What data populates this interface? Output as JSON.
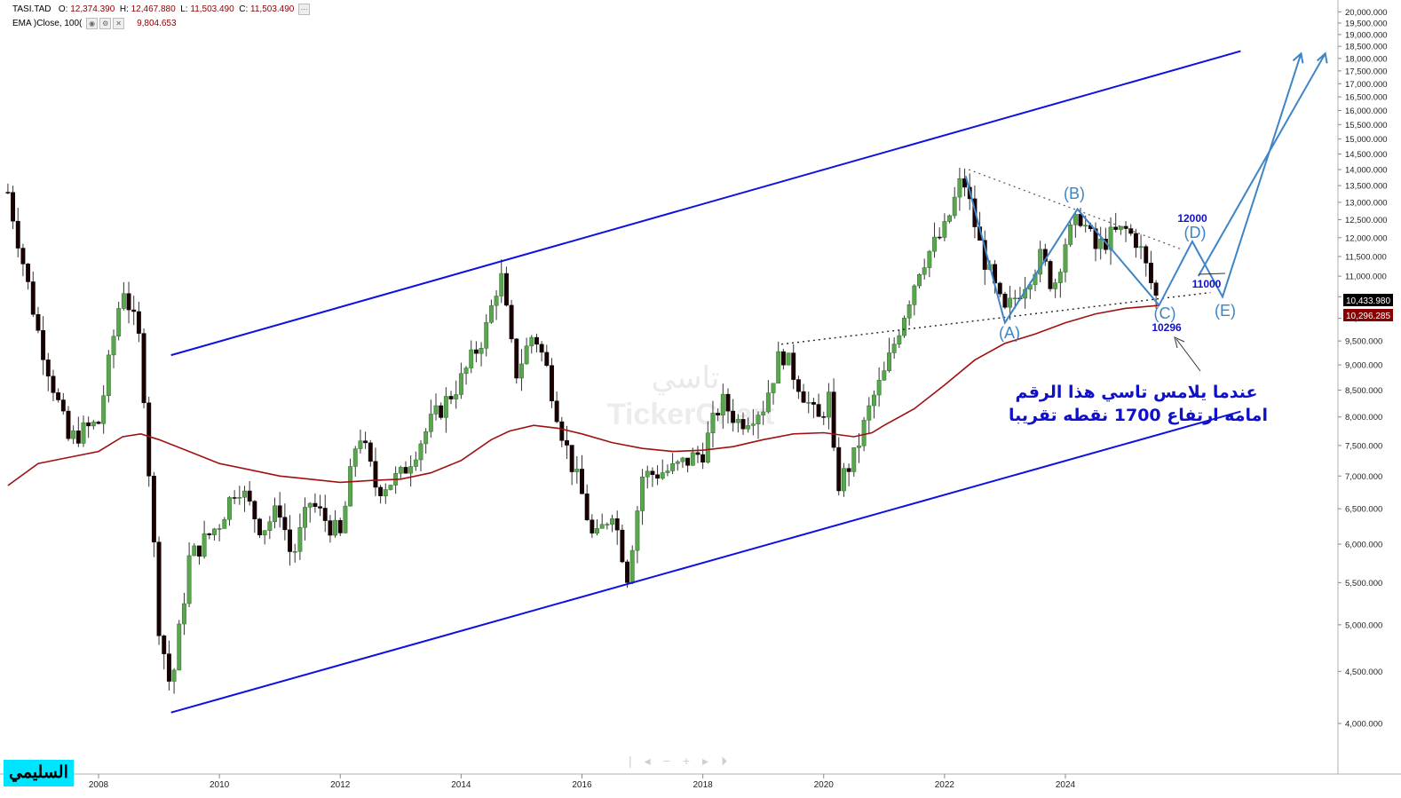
{
  "legend": {
    "symbol": "TASI.TAD",
    "o_label": "O:",
    "o": "12,374.390",
    "h_label": "H:",
    "h": "12,467.880",
    "l_label": "L:",
    "l": "11,503.490",
    "c_label": "C:",
    "c": "11,503.490",
    "ema_label": "EMA  )Close, 100(",
    "ema_value": "9,804.653"
  },
  "price_badges": {
    "last": "10,433.980",
    "ema": "10,296.285"
  },
  "annotations": {
    "label_a": "(A)",
    "label_b": "(B)",
    "label_c": "(C)",
    "label_d": "(D)",
    "label_e": "(E)",
    "target_12000": "12000",
    "target_11000": "11000",
    "low_10296": "10296",
    "note_line1": "عندما يلامس تاسي هذا الرقم",
    "note_line2": "امامه ارتفاع 1700 نقطه تقريبا"
  },
  "watermark": {
    "arabic": "تاسي",
    "brand": "TickerChart"
  },
  "logo": "السليمي",
  "colors": {
    "up": "#5aa64f",
    "down": "#1a0000",
    "ema": "#a01010",
    "channel": "#1010e0",
    "wave": "#3d85c6",
    "badge_last": "#000000",
    "badge_ema": "#8b0000"
  },
  "chart_data": {
    "type": "candlestick",
    "title": "TASI.TAD",
    "y_scale": "log",
    "ylim": [
      3800,
      20000
    ],
    "y_ticks": [
      4000,
      4500,
      5000,
      5500,
      6000,
      6500,
      7000,
      7500,
      8000,
      8500,
      9000,
      9500,
      10000,
      10500,
      11000,
      11500,
      12000,
      12500,
      13000,
      13500,
      14000,
      14500,
      15000,
      15500,
      16000,
      16500,
      17000,
      17500,
      18000,
      18500,
      19000,
      19500,
      20000
    ],
    "y_tick_labels": [
      "4,000.000",
      "4,500.000",
      "5,000.000",
      "5,500.000",
      "6,000.000",
      "6,500.000",
      "7,000.000",
      "7,500.000",
      "8,000.000",
      "8,500.000",
      "9,000.000",
      "9,500.000",
      "10,000.000",
      "10,500.000",
      "11,000.000",
      "11,500.000",
      "12,000.000",
      "12,500.000",
      "13,000.000",
      "13,500.000",
      "14,000.000",
      "14,500.000",
      "15,000.000",
      "15,500.000",
      "16,000.000",
      "16,500.000",
      "17,000.000",
      "17,500.000",
      "18,000.000",
      "18,500.000",
      "19,000.000",
      "19,500.000",
      "20,000.000"
    ],
    "x_ticks": [
      2008,
      2010,
      2012,
      2014,
      2016,
      2018,
      2020,
      2022,
      2024
    ],
    "x_tick_labels": [
      "2008",
      "2010",
      "2012",
      "2014",
      "2016",
      "2018",
      "2020",
      "2022",
      "2024"
    ],
    "xlim": [
      2006.4,
      2028.6
    ],
    "series": [
      {
        "kind": "price",
        "points": [
          [
            2006.5,
            13300
          ],
          [
            2007.0,
            9700
          ],
          [
            2007.5,
            7600
          ],
          [
            2008.0,
            7900
          ],
          [
            2008.4,
            10800
          ],
          [
            2008.7,
            9400
          ],
          [
            2009.0,
            5000
          ],
          [
            2009.2,
            4300
          ],
          [
            2009.5,
            5800
          ],
          [
            2010.0,
            6300
          ],
          [
            2010.3,
            6900
          ],
          [
            2010.7,
            6200
          ],
          [
            2011.0,
            6500
          ],
          [
            2011.2,
            5800
          ],
          [
            2011.5,
            6600
          ],
          [
            2012.0,
            6100
          ],
          [
            2012.3,
            7800
          ],
          [
            2012.6,
            6800
          ],
          [
            2013.0,
            7000
          ],
          [
            2013.5,
            7900
          ],
          [
            2014.0,
            8700
          ],
          [
            2014.4,
            9700
          ],
          [
            2014.65,
            11100
          ],
          [
            2014.9,
            8800
          ],
          [
            2015.2,
            9700
          ],
          [
            2015.4,
            9000
          ],
          [
            2015.7,
            7600
          ],
          [
            2016.0,
            6700
          ],
          [
            2016.2,
            6000
          ],
          [
            2016.5,
            6500
          ],
          [
            2016.75,
            5600
          ],
          [
            2017.0,
            7000
          ],
          [
            2017.5,
            7100
          ],
          [
            2018.0,
            7400
          ],
          [
            2018.3,
            8300
          ],
          [
            2018.6,
            7900
          ],
          [
            2019.0,
            8200
          ],
          [
            2019.3,
            9300
          ],
          [
            2019.6,
            8600
          ],
          [
            2019.9,
            7900
          ],
          [
            2020.1,
            8400
          ],
          [
            2020.2,
            6800
          ],
          [
            2020.5,
            7300
          ],
          [
            2020.8,
            8300
          ],
          [
            2021.0,
            8800
          ],
          [
            2021.3,
            10000
          ],
          [
            2021.6,
            11300
          ],
          [
            2022.0,
            12200
          ],
          [
            2022.3,
            13800
          ],
          [
            2022.6,
            11700
          ],
          [
            2022.9,
            10400
          ],
          [
            2023.0,
            10100
          ],
          [
            2023.3,
            10800
          ],
          [
            2023.6,
            11500
          ],
          [
            2023.8,
            10700
          ],
          [
            2024.0,
            11900
          ],
          [
            2024.25,
            12600
          ],
          [
            2024.5,
            11700
          ],
          [
            2024.8,
            12100
          ],
          [
            2025.0,
            12200
          ],
          [
            2025.2,
            11900
          ],
          [
            2025.4,
            10900
          ],
          [
            2025.55,
            10300
          ]
        ]
      },
      {
        "kind": "ema",
        "name": "EMA )Close, 100(",
        "points": [
          [
            2006.5,
            6850
          ],
          [
            2007.0,
            7200
          ],
          [
            2007.5,
            7300
          ],
          [
            2008.0,
            7400
          ],
          [
            2008.4,
            7650
          ],
          [
            2008.7,
            7700
          ],
          [
            2009.0,
            7600
          ],
          [
            2009.5,
            7400
          ],
          [
            2010.0,
            7200
          ],
          [
            2010.5,
            7100
          ],
          [
            2011.0,
            7000
          ],
          [
            2011.5,
            6950
          ],
          [
            2012.0,
            6900
          ],
          [
            2012.5,
            6930
          ],
          [
            2013.0,
            6950
          ],
          [
            2013.5,
            7050
          ],
          [
            2014.0,
            7250
          ],
          [
            2014.5,
            7600
          ],
          [
            2014.8,
            7750
          ],
          [
            2015.2,
            7850
          ],
          [
            2015.6,
            7800
          ],
          [
            2016.0,
            7700
          ],
          [
            2016.5,
            7550
          ],
          [
            2017.0,
            7450
          ],
          [
            2017.5,
            7400
          ],
          [
            2018.0,
            7420
          ],
          [
            2018.5,
            7480
          ],
          [
            2019.0,
            7600
          ],
          [
            2019.5,
            7700
          ],
          [
            2020.0,
            7720
          ],
          [
            2020.5,
            7650
          ],
          [
            2020.8,
            7720
          ],
          [
            2021.0,
            7850
          ],
          [
            2021.5,
            8150
          ],
          [
            2022.0,
            8600
          ],
          [
            2022.5,
            9100
          ],
          [
            2023.0,
            9450
          ],
          [
            2023.5,
            9650
          ],
          [
            2024.0,
            9900
          ],
          [
            2024.5,
            10100
          ],
          [
            2025.0,
            10230
          ],
          [
            2025.55,
            10296
          ]
        ]
      }
    ]
  }
}
